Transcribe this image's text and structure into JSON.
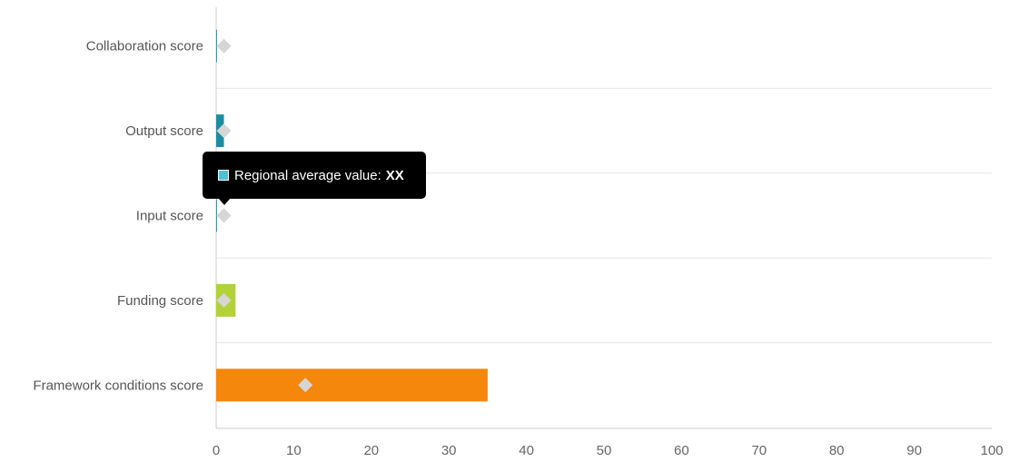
{
  "chart_data": {
    "type": "bar",
    "orientation": "horizontal",
    "categories": [
      "Collaboration score",
      "Output score",
      "Input score",
      "Funding score",
      "Framework conditions score"
    ],
    "values": [
      0,
      1,
      0,
      2.5,
      35
    ],
    "bar_colors": [
      "#1aa0b5",
      "#1a8ea0",
      "#1aa0b5",
      "#b2d235",
      "#f5870c"
    ],
    "markers": [
      1,
      1,
      1,
      1,
      11.5
    ],
    "marker_color": "#d6d6d6",
    "xlim": [
      0,
      100
    ],
    "x_ticks": [
      0,
      10,
      20,
      30,
      40,
      50,
      60,
      70,
      80,
      90,
      100
    ],
    "grid": true,
    "legend": "none"
  },
  "tooltip": {
    "label": "Regional average value:",
    "value": "XX",
    "swatch_color": "#4fc1d0"
  }
}
